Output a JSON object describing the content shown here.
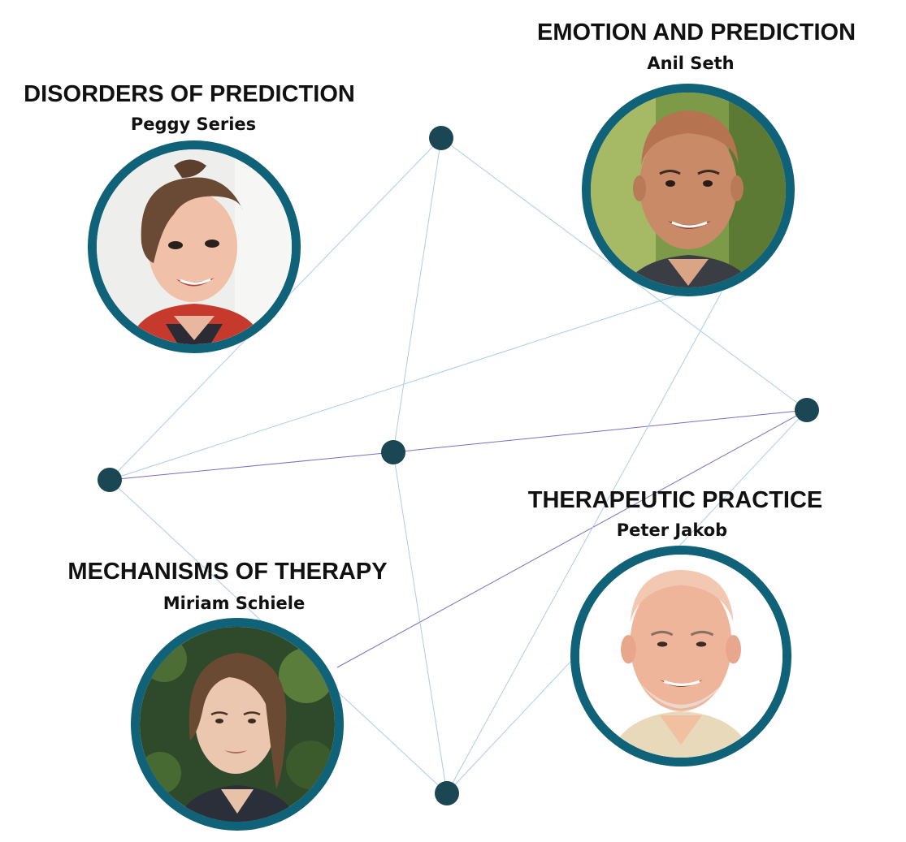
{
  "colors": {
    "node": "#1b4654",
    "ring": "#0f6278",
    "edge_light": "#a9cde9",
    "edge_purple": "#7a6fc0"
  },
  "sessions": [
    {
      "key": "disorders",
      "title": "DISORDERS OF PREDICTION",
      "speaker": "Peggy Series",
      "portrait_icon": "woman-portrait-icon"
    },
    {
      "key": "emotion",
      "title": "EMOTION AND PREDICTION",
      "speaker": "Anil Seth",
      "portrait_icon": "man-portrait-icon"
    },
    {
      "key": "therapeutic",
      "title": "THERAPEUTIC PRACTICE",
      "speaker": "Peter Jakob",
      "portrait_icon": "man-portrait-icon"
    },
    {
      "key": "mechanisms",
      "title": "MECHANISMS OF THERAPY",
      "speaker": "Miriam Schiele",
      "portrait_icon": "woman-portrait-icon"
    }
  ]
}
